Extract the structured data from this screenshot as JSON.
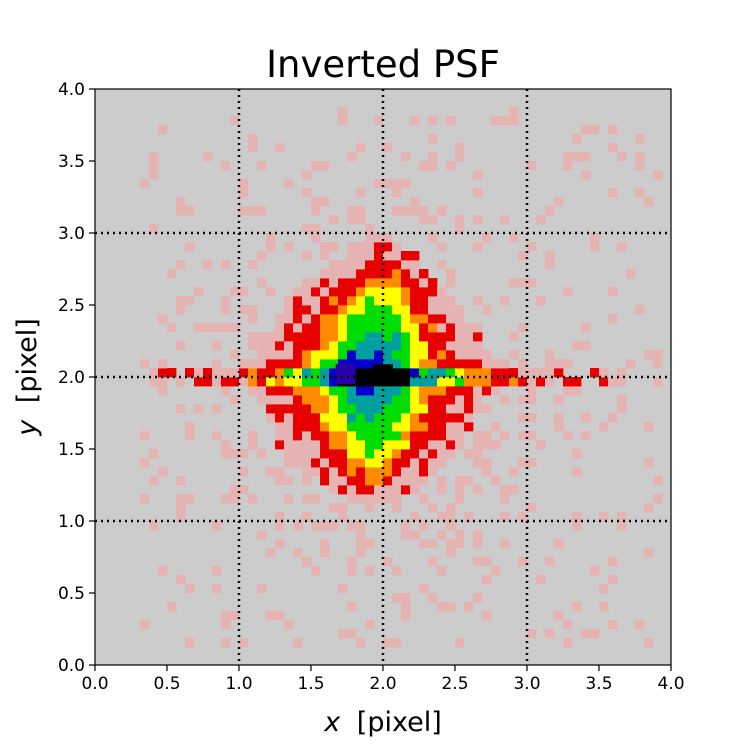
{
  "chart_data": {
    "type": "heatmap",
    "title": "Inverted PSF",
    "xlabel_var": "x",
    "xlabel_unit": "[pixel]",
    "ylabel_var": "y",
    "ylabel_unit": "[pixel]",
    "xlim": [
      0.0,
      4.0
    ],
    "ylim": [
      0.0,
      4.0
    ],
    "xticks": [
      "0.0",
      "0.5",
      "1.0",
      "1.5",
      "2.0",
      "2.5",
      "3.0",
      "3.5",
      "4.0"
    ],
    "yticks": [
      "0.0",
      "0.5",
      "1.0",
      "1.5",
      "2.0",
      "2.5",
      "3.0",
      "3.5",
      "4.0"
    ],
    "grid_lines": {
      "x": [
        1.0,
        2.0,
        3.0
      ],
      "y": [
        1.0,
        2.0,
        3.0
      ],
      "style": "dotted"
    },
    "background_color": "#cccccc",
    "colormap": [
      "#cccccc",
      "#e6b3b3",
      "#e60000",
      "#ff8c00",
      "#ffff00",
      "#00dd00",
      "#00a0a0",
      "#0000cc",
      "#000000"
    ],
    "features": {
      "peaks": [
        {
          "x": 2.0,
          "y": 2.02,
          "value": 1.0,
          "color": "#000000"
        },
        {
          "x": 1.74,
          "y": 2.02,
          "value": 0.93,
          "color": "#2a00aa"
        }
      ],
      "core_region": {
        "x": [
          1.2,
          2.6
        ],
        "y": [
          1.15,
          2.85
        ]
      },
      "horizontal_streak_y": 2.0,
      "noise_extent": {
        "x": [
          0.3,
          3.95
        ],
        "y": [
          0.1,
          3.9
        ]
      }
    }
  }
}
